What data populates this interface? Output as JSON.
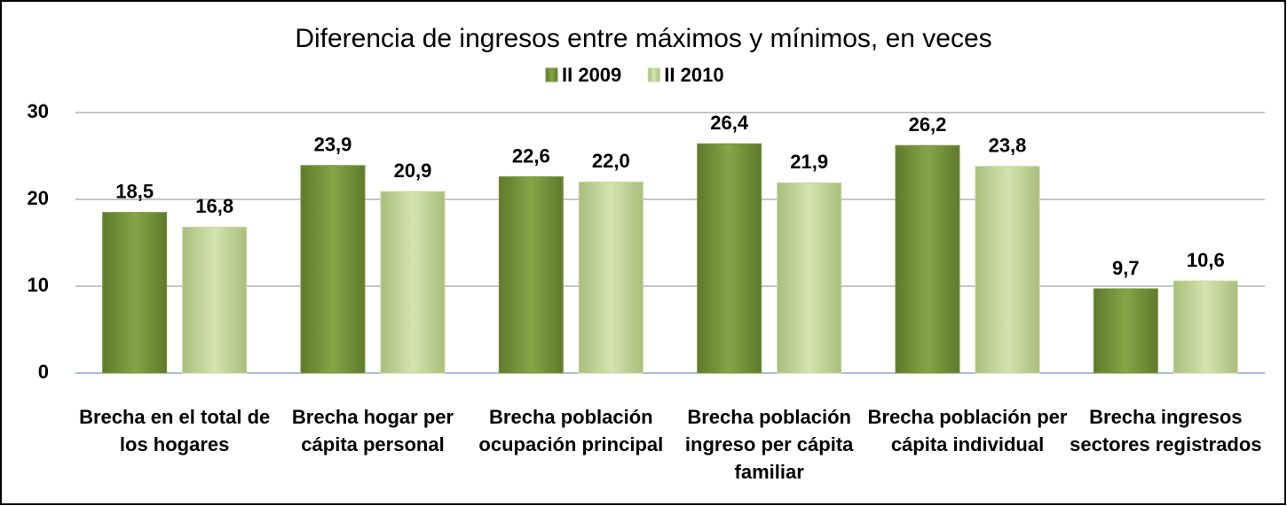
{
  "chart_data": {
    "type": "bar",
    "title": "Diferencia de ingresos entre máximos y mínimos, en veces",
    "categories": [
      "Brecha en el total de los hogares",
      "Brecha hogar per cápita personal",
      "Brecha población ocupación principal",
      "Brecha población ingreso per cápita familiar",
      "Brecha población per cápita individual",
      "Brecha ingresos sectores registrados"
    ],
    "series": [
      {
        "name": "II 2009",
        "color": "#77933c",
        "values": [
          18.5,
          23.9,
          22.6,
          26.4,
          26.2,
          9.7
        ],
        "value_labels": [
          "18,5",
          "23,9",
          "22,6",
          "26,4",
          "26,2",
          "9,7"
        ]
      },
      {
        "name": "II 2010",
        "color": "#c3d69b",
        "values": [
          16.8,
          20.9,
          22.0,
          21.9,
          23.8,
          10.6
        ],
        "value_labels": [
          "16,8",
          "20,9",
          "22,0",
          "21,9",
          "23,8",
          "10,6"
        ]
      }
    ],
    "ylim": [
      0,
      30
    ],
    "yticks": [
      0,
      10,
      20,
      30
    ],
    "grid": true,
    "legend": "top"
  }
}
